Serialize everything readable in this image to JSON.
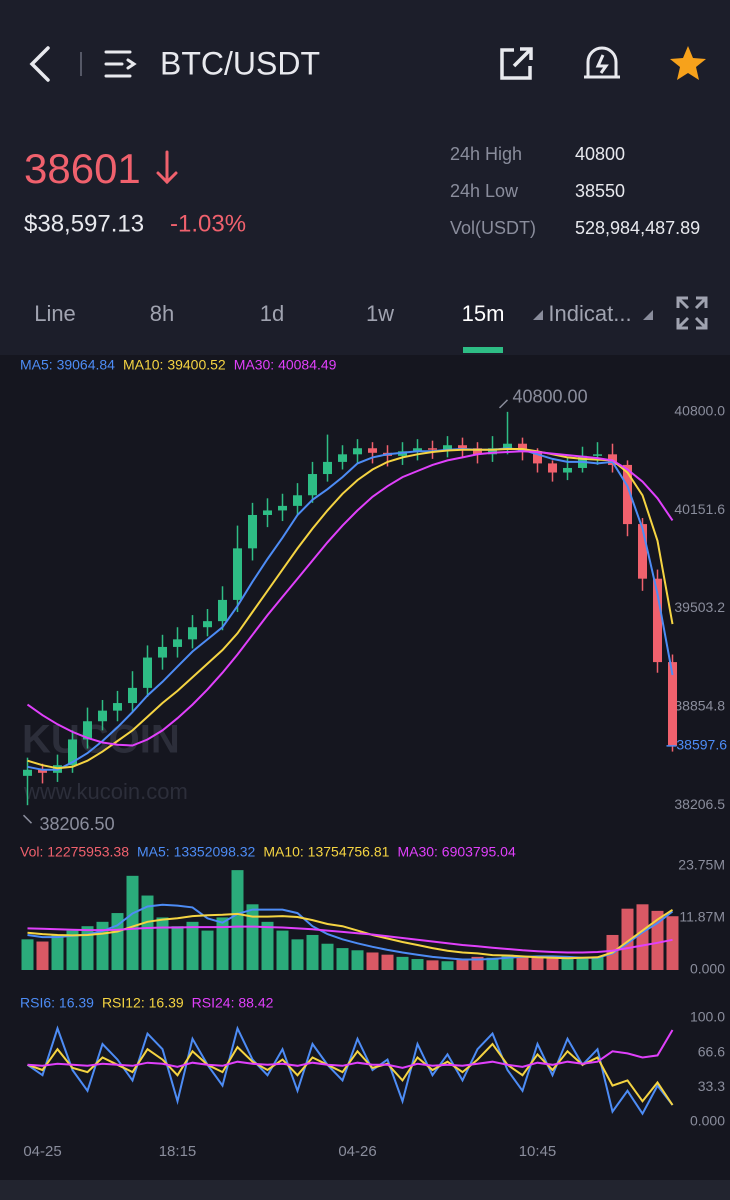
{
  "header": {
    "title": "BTC/USDT"
  },
  "ticker": {
    "price": "38601",
    "usd_price": "$38,597.13",
    "change": "-1.03%",
    "stats": [
      {
        "label": "24h High",
        "value": "40800"
      },
      {
        "label": "24h Low",
        "value": "38550"
      },
      {
        "label": "Vol(USDT)",
        "value": "528,984,487.89"
      }
    ]
  },
  "tabs": {
    "items": [
      "Line",
      "8h",
      "1d",
      "1w",
      "15m",
      "Indicat..."
    ],
    "active": 4
  },
  "chart_data": [
    {
      "type": "candlestick",
      "open": [
        38400,
        38440,
        38420,
        38470,
        38640,
        38760,
        38830,
        38880,
        38980,
        39180,
        39250,
        39300,
        39380,
        39420,
        39560,
        39900,
        40120,
        40150,
        40180,
        40250,
        40390,
        40470,
        40520,
        40560,
        40530,
        40510,
        40540,
        40560,
        40550,
        40580,
        40560,
        40520,
        40560,
        40590,
        40540,
        40460,
        40400,
        40430,
        40510,
        40520,
        40450,
        40060,
        39700,
        39150
      ],
      "high": [
        38520,
        38480,
        38540,
        38700,
        38850,
        38900,
        38960,
        39090,
        39260,
        39330,
        39380,
        39460,
        39500,
        39650,
        40050,
        40200,
        40230,
        40260,
        40330,
        40470,
        40650,
        40580,
        40620,
        40600,
        40580,
        40600,
        40620,
        40610,
        40640,
        40630,
        40600,
        40640,
        40800,
        40630,
        40560,
        40480,
        40500,
        40570,
        40600,
        40590,
        40480,
        40100,
        39760,
        39200
      ],
      "low": [
        38206.5,
        38350,
        38360,
        38420,
        38580,
        38700,
        38760,
        38820,
        38920,
        39100,
        39180,
        39240,
        39320,
        39360,
        39480,
        39820,
        40040,
        40080,
        40120,
        40200,
        40340,
        40420,
        40460,
        40460,
        40440,
        40450,
        40480,
        40490,
        40500,
        40500,
        40460,
        40470,
        40520,
        40480,
        40400,
        40340,
        40350,
        40400,
        40450,
        40400,
        39980,
        39620,
        39080,
        38560
      ],
      "close": [
        38440,
        38420,
        38470,
        38640,
        38760,
        38830,
        38880,
        38980,
        39180,
        39250,
        39300,
        39380,
        39420,
        39560,
        39900,
        40120,
        40150,
        40180,
        40250,
        40390,
        40470,
        40520,
        40560,
        40530,
        40510,
        40540,
        40560,
        40550,
        40580,
        40560,
        40520,
        40560,
        40590,
        40540,
        40460,
        40400,
        40430,
        40510,
        40520,
        40450,
        40060,
        39700,
        39150,
        38597.6
      ],
      "up_color": "#2ebd85",
      "down_color": "#f0616d",
      "series": [
        {
          "name": "MA5: 39064.84",
          "color": "#4d8cf5",
          "values": [
            38460,
            38440,
            38440,
            38490,
            38550,
            38630,
            38720,
            38820,
            38930,
            39020,
            39120,
            39220,
            39300,
            39380,
            39520,
            39680,
            39830,
            39970,
            40120,
            40220,
            40290,
            40370,
            40460,
            40500,
            40520,
            40530,
            40540,
            40540,
            40550,
            40555,
            40550,
            40550,
            40560,
            40550,
            40520,
            40490,
            40470,
            40470,
            40460,
            40470,
            40310,
            40030,
            39600,
            39064.84
          ]
        },
        {
          "name": "MA10: 39400.52",
          "color": "#f5d442",
          "values": [
            38500,
            38470,
            38450,
            38460,
            38500,
            38560,
            38630,
            38700,
            38790,
            38880,
            38960,
            39050,
            39140,
            39230,
            39340,
            39480,
            39620,
            39760,
            39900,
            40030,
            40150,
            40260,
            40350,
            40420,
            40470,
            40500,
            40520,
            40535,
            40545,
            40550,
            40550,
            40550,
            40555,
            40555,
            40540,
            40520,
            40500,
            40490,
            40485,
            40480,
            40400,
            40250,
            39950,
            39400.52
          ]
        },
        {
          "name": "MA30: 40084.49",
          "color": "#e040fb",
          "values": [
            38870,
            38800,
            38740,
            38690,
            38650,
            38620,
            38605,
            38600,
            38640,
            38700,
            38780,
            38870,
            38970,
            39080,
            39200,
            39330,
            39460,
            39580,
            39700,
            39820,
            39940,
            40050,
            40150,
            40240,
            40310,
            40370,
            40410,
            40450,
            40480,
            40500,
            40520,
            40530,
            40535,
            40540,
            40535,
            40525,
            40515,
            40505,
            40495,
            40480,
            40420,
            40340,
            40230,
            40084.49
          ]
        }
      ],
      "ylim": [
        38010,
        41010
      ],
      "yticks": [
        {
          "value": 40800,
          "label": "40800.0"
        },
        40151.6,
        39503.2,
        38854.8,
        38206.5
      ],
      "high_label": "40800.00",
      "low_label": "38206.50",
      "last_label": "38597.6",
      "watermark": [
        "KUCOIN",
        "www.kucoin.com"
      ]
    },
    {
      "type": "bar",
      "name": "Vol: 12275953.38",
      "color": "#f0616d",
      "values": [
        7000000,
        6500000,
        8000000,
        9000000,
        10000000,
        11000000,
        13000000,
        21500000,
        17000000,
        12000000,
        10000000,
        11000000,
        9000000,
        12000000,
        22800000,
        15000000,
        11000000,
        9000000,
        7000000,
        8000000,
        6000000,
        5000000,
        4500000,
        4000000,
        3500000,
        3000000,
        2500000,
        2200000,
        2000000,
        2500000,
        3000000,
        2800000,
        3500000,
        3000000,
        3200000,
        2800000,
        2500000,
        2600000,
        3000000,
        8000000,
        14000000,
        15000000,
        13500000,
        12275953.38
      ],
      "series": [
        {
          "name": "MA5: 13352098.32",
          "color": "#4d8cf5",
          "values": [
            8000000,
            7500000,
            7500000,
            7800000,
            8100000,
            8900000,
            10200000,
            12900000,
            14500000,
            14900000,
            14700000,
            14300000,
            11800000,
            10800000,
            12800000,
            13800000,
            13800000,
            13800000,
            13000000,
            10000000,
            8200000,
            7000000,
            6100000,
            5300000,
            4600000,
            4000000,
            3500000,
            3000000,
            2700000,
            2400000,
            2400000,
            2500000,
            2800000,
            3000000,
            3100000,
            3100000,
            3000000,
            2800000,
            2800000,
            3800000,
            6100000,
            8600000,
            10700000,
            13352098.32
          ]
        },
        {
          "name": "MA10: 13754756.81",
          "color": "#f5d442",
          "values": [
            8500000,
            8200000,
            8000000,
            7900000,
            8000000,
            8300000,
            8800000,
            9900000,
            11000000,
            11500000,
            11800000,
            12300000,
            12500000,
            12600000,
            12800000,
            12200000,
            12200000,
            12300000,
            12100000,
            11400000,
            10500000,
            10000000,
            9000000,
            8000000,
            7200000,
            6400000,
            5700000,
            5000000,
            4400000,
            4000000,
            3800000,
            3400000,
            3300000,
            3100000,
            2900000,
            2800000,
            2700000,
            2800000,
            2900000,
            4000000,
            6500000,
            9000000,
            11500000,
            13754756.81
          ]
        },
        {
          "name": "MA30: 6903795.04",
          "color": "#e040fb",
          "values": [
            9500000,
            9400000,
            9300000,
            9200000,
            9100000,
            9100000,
            9200000,
            9400000,
            9600000,
            9700000,
            9700000,
            9800000,
            9800000,
            9800000,
            9900000,
            9900000,
            9800000,
            9700000,
            9500000,
            9300000,
            9000000,
            8700000,
            8400000,
            8100000,
            7700000,
            7300000,
            6900000,
            6500000,
            6100000,
            5700000,
            5400000,
            5100000,
            4800000,
            4500000,
            4300000,
            4100000,
            4000000,
            4000000,
            4100000,
            4400000,
            5000000,
            5600000,
            6200000,
            6903795.04
          ]
        }
      ],
      "ylim": [
        0,
        25000000
      ],
      "yticks": [
        {
          "value": 23750000,
          "label": "23.75M"
        },
        {
          "value": 11870000,
          "label": "11.87M"
        },
        {
          "value": 0,
          "label": "0.000"
        }
      ]
    },
    {
      "type": "line",
      "categories": [
        null,
        "04-25",
        null,
        null,
        null,
        null,
        null,
        null,
        null,
        null,
        "18:15",
        null,
        null,
        null,
        null,
        null,
        null,
        null,
        null,
        null,
        null,
        null,
        "04-26",
        null,
        null,
        null,
        null,
        null,
        null,
        null,
        null,
        null,
        null,
        null,
        "10:45",
        null,
        null,
        null,
        null,
        null,
        null,
        null,
        null,
        null
      ],
      "series": [
        {
          "name": "RSI6: 16.39",
          "color": "#4d8cf5",
          "values": [
            55,
            45,
            90,
            50,
            30,
            75,
            60,
            40,
            85,
            70,
            20,
            80,
            55,
            35,
            90,
            60,
            45,
            70,
            30,
            75,
            55,
            40,
            80,
            50,
            60,
            20,
            75,
            45,
            65,
            40,
            70,
            85,
            50,
            30,
            75,
            45,
            80,
            55,
            70,
            10,
            30,
            8,
            35,
            16.39
          ]
        },
        {
          "name": "RSI12: 16.39",
          "color": "#f5d442",
          "values": [
            55,
            50,
            70,
            52,
            48,
            62,
            55,
            48,
            70,
            60,
            45,
            68,
            55,
            48,
            72,
            58,
            50,
            60,
            45,
            62,
            55,
            48,
            68,
            52,
            56,
            40,
            62,
            50,
            58,
            48,
            60,
            75,
            55,
            45,
            65,
            50,
            68,
            55,
            62,
            35,
            40,
            20,
            38,
            16.39
          ]
        },
        {
          "name": "RSI24: 88.42",
          "color": "#e040fb",
          "values": [
            55,
            54,
            56,
            55,
            54,
            56,
            55,
            54,
            57,
            56,
            53,
            57,
            55,
            54,
            58,
            56,
            55,
            56,
            54,
            57,
            55,
            54,
            57,
            55,
            55,
            52,
            56,
            54,
            55,
            54,
            56,
            58,
            55,
            53,
            57,
            55,
            58,
            56,
            58,
            68,
            66,
            62,
            64,
            88.42
          ]
        }
      ],
      "ylim": [
        0,
        100
      ],
      "yticks": [
        {
          "value": 100,
          "label": "100.0"
        },
        66.6,
        33.3,
        {
          "value": 0,
          "label": "0.000"
        }
      ]
    }
  ]
}
